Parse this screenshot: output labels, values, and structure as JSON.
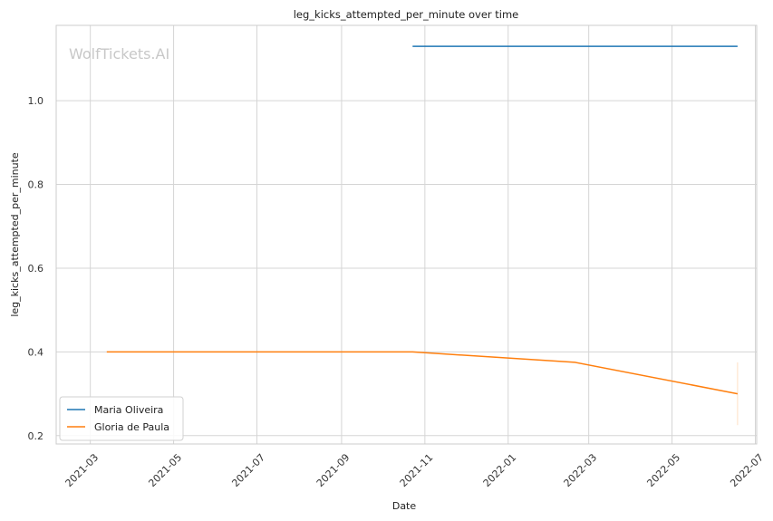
{
  "chart_data": {
    "type": "line",
    "title": "leg_kicks_attempted_per_minute over time",
    "xlabel": "Date",
    "ylabel": "leg_kicks_attempted_per_minute",
    "watermark": "WolfTickets.AI",
    "xlim": [
      "2021-02-04",
      "2022-07-02"
    ],
    "ylim": [
      0.18,
      1.18
    ],
    "x_ticks": [
      "2021-03",
      "2021-05",
      "2021-07",
      "2021-09",
      "2021-11",
      "2022-01",
      "2022-03",
      "2022-05",
      "2022-07"
    ],
    "y_ticks": [
      0.2,
      0.4,
      0.6,
      0.8,
      1.0
    ],
    "grid": true,
    "legend_position": "lower-left",
    "series": [
      {
        "name": "Maria Oliveira",
        "color": "#1f77b4",
        "points": [
          {
            "x": "2021-10-23",
            "y": 1.13
          },
          {
            "x": "2022-06-18",
            "y": 1.13
          }
        ]
      },
      {
        "name": "Gloria de Paula",
        "color": "#ff7f0e",
        "points": [
          {
            "x": "2021-03-13",
            "y": 0.4
          },
          {
            "x": "2021-10-23",
            "y": 0.4
          },
          {
            "x": "2022-02-19",
            "y": 0.375
          },
          {
            "x": "2022-06-18",
            "y": 0.3
          }
        ],
        "error_bar": {
          "x": "2022-06-18",
          "low": 0.225,
          "high": 0.375
        }
      }
    ]
  }
}
